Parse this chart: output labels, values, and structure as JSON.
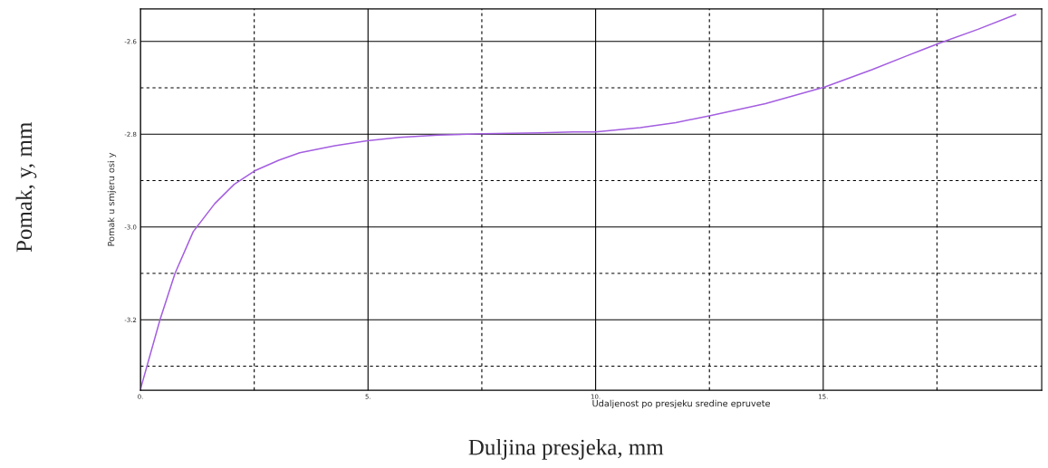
{
  "chart_data": {
    "type": "line",
    "xlabel": "Udaljenost po presjeku sredine epruvete",
    "ylabel": "Pomak u smjeru osi y",
    "annotations": [
      "Duljina presjeka, mm",
      "Pomak, y, mm"
    ],
    "x": [
      0,
      0.43,
      0.76,
      1.16,
      1.63,
      2.06,
      2.53,
      3.04,
      3.5,
      4.27,
      4.98,
      5.69,
      6.54,
      7.53,
      8.79,
      9.5,
      10.0,
      10.98,
      11.76,
      12.52,
      13.73,
      15.04,
      16.07,
      16.84,
      17.55,
      18.4,
      19.23
    ],
    "series": [
      {
        "color": "#a45ee0",
        "values": [
          -3.35,
          -3.2,
          -3.1,
          -3.01,
          -2.95,
          -2.908,
          -2.878,
          -2.856,
          -2.84,
          -2.825,
          -2.814,
          -2.807,
          -2.802,
          -2.799,
          -2.797,
          -2.795,
          -2.795,
          -2.786,
          -2.775,
          -2.76,
          -2.734,
          -2.698,
          -2.661,
          -2.631,
          -2.604,
          -2.574,
          -2.542
        ]
      }
    ],
    "xlim": [
      0,
      19.8
    ],
    "ylim": [
      -3.352,
      -2.53
    ],
    "xticks": [
      {
        "value": 0,
        "label": "0."
      },
      {
        "value": 2.5,
        "label": null
      },
      {
        "value": 5,
        "label": "5."
      },
      {
        "value": 7.5,
        "label": null
      },
      {
        "value": 10,
        "label": "10."
      },
      {
        "value": 12.5,
        "label": null
      },
      {
        "value": 15,
        "label": "15."
      },
      {
        "value": 17.5,
        "label": null
      }
    ],
    "yticks": [
      {
        "value": -3.3,
        "label": null
      },
      {
        "value": -3.2,
        "label": "-3.2"
      },
      {
        "value": -3.1,
        "label": null
      },
      {
        "value": -3.0,
        "label": "-3.0"
      },
      {
        "value": -2.9,
        "label": null
      },
      {
        "value": -2.8,
        "label": "-2.8"
      },
      {
        "value": -2.7,
        "label": null
      },
      {
        "value": -2.6,
        "label": "-2.6"
      }
    ],
    "grid": true,
    "legend": false,
    "marker": "none",
    "line_style": "solid"
  }
}
